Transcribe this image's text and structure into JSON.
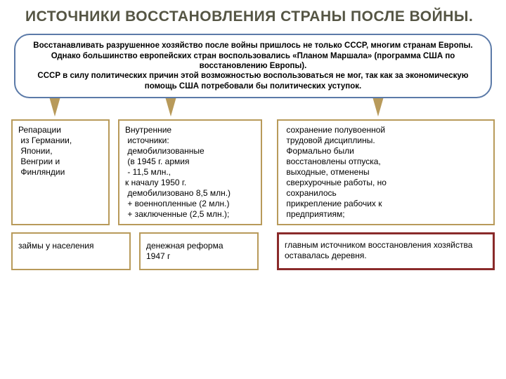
{
  "title": "ИСТОЧНИКИ ВОССТАНОВЛЕНИЯ СТРАНЫ ПОСЛЕ ВОЙНЫ.",
  "intro": "Восстанавливать разрушенное хозяйство после войны пришлось не только СССР, многим странам Европы. Однако большинство европейских стран воспользовались «Планом Маршала» (программа США по восстановлению Европы).\nСССР в силу политических причин этой возможностью воспользоваться не мог, так как за экономическую помощь США потребовали бы политических уступок.",
  "boxes": {
    "reparations": "Репарации\n из Германии,\n Японии,\n Венгрии и\n Финляндии",
    "internal": "Внутренние\n источники:\n демобилизованные\n (в 1945 г. армия\n - 11,5 млн.,\nк началу 1950 г.\n демобилизовано 8,5 млн.)\n + военнопленные (2 млн.)\n + заключенные (2,5 млн.);",
    "discipline": " сохранение полувоенной\n трудовой дисциплины.\n Формально были\n восстановлены отпуска,\n выходные, отменены\n сверхурочные работы, но\n сохранилось\n прикрепление рабочих к\n предприятиям;",
    "loans": "займы у населения",
    "reform": "денежная реформа\n1947 г",
    "main": "главным источником восстановления хозяйства оставалась деревня."
  },
  "colors": {
    "title": "#555544",
    "box_border": "#b89a5a",
    "intro_border": "#5b7aa8",
    "highlight_border": "#8a2a2a",
    "background": "#ffffff"
  }
}
